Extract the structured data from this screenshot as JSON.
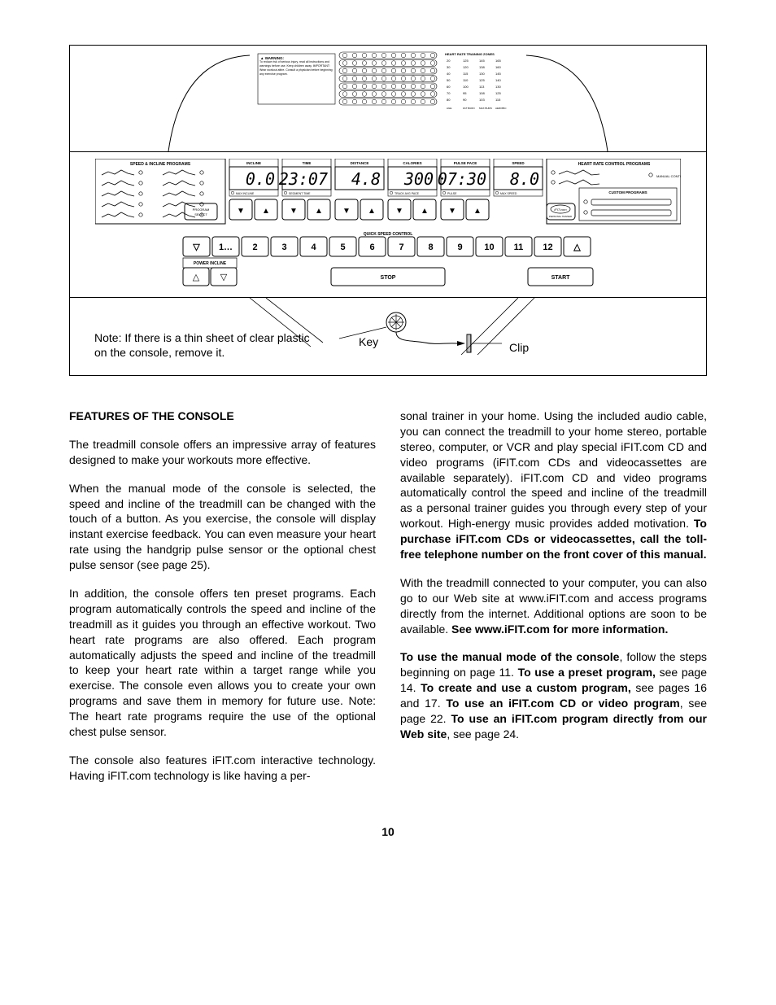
{
  "figure": {
    "note": "Note: If there is a thin sheet of clear plastic on the console, remove it.",
    "key_label": "Key",
    "clip_label": "Clip",
    "warning_title": "WARNING:",
    "warning_body": "To reduce risk of serious injury, read all instructions and warnings before use. Keep children away. IMPORTANT: Wear workout attire. Consult a physician before beginning any exercise program.",
    "hr_zone_title": "HEART RATE TRAINING ZONES",
    "hr_zone_header": [
      "AGE",
      "FAT BURN",
      "MAX BURN",
      "AEROBIC"
    ],
    "hr_zone_rows": [
      [
        "20",
        "125",
        "145",
        "165"
      ],
      [
        "30",
        "120",
        "138",
        "160"
      ],
      [
        "40",
        "115",
        "130",
        "145"
      ],
      [
        "50",
        "110",
        "125",
        "140"
      ],
      [
        "60",
        "100",
        "113",
        "130"
      ],
      [
        "70",
        "95",
        "108",
        "125"
      ],
      [
        "80",
        "90",
        "103",
        "115"
      ]
    ],
    "console": {
      "left_title": "SPEED & INCLINE PROGRAMS",
      "right_title": "HEART RATE CONTROL PROGRAMS",
      "manual_label": "MANUAL CONTROL",
      "custom_label": "CUSTOM PROGRAMS",
      "program_select": "PROGRAM SELECT",
      "ifit_label": "iFIT.com",
      "personal_trainer": "PERSONAL TRAINER",
      "displays": [
        {
          "title": "INCLINE",
          "value": "0.0",
          "sub": "MAX INCLINE"
        },
        {
          "title": "TIME",
          "value": "23:07",
          "sub": "SEGMENT TIME"
        },
        {
          "title": "DISTANCE",
          "value": "4.8",
          "sub": ""
        },
        {
          "title": "CALORIES",
          "value": "300",
          "sub": "TRACK  AVG PACE"
        },
        {
          "title": "PULSE  PACE",
          "value": "07:30",
          "sub": "PULSE"
        },
        {
          "title": "SPEED",
          "value": "8.0",
          "sub": "MAX SPEED"
        }
      ],
      "quick_speed_label": "QUICK SPEED CONTROL",
      "quick_speed_buttons": [
        "▽",
        "1…",
        "2",
        "3",
        "4",
        "5",
        "6",
        "7",
        "8",
        "9",
        "10",
        "11",
        "12",
        "△"
      ],
      "power_incline_label": "POWER INCLINE",
      "power_incline_buttons": [
        "△",
        "▽"
      ],
      "stop_label": "STOP",
      "start_label": "START"
    }
  },
  "body": {
    "heading": "FEATURES OF THE CONSOLE",
    "p1": "The treadmill console offers an impressive array of features designed to make your workouts more effective.",
    "p2": "When the manual mode of the console is selected, the speed and incline of the treadmill can be changed with the touch of a button. As you exercise, the console will display instant exercise feedback. You can even measure your heart rate using the handgrip pulse sensor or the optional chest pulse sensor (see page 25).",
    "p3": "In addition, the console offers ten preset programs. Each program automatically controls the speed and incline of the treadmill as it guides you through an effective workout. Two heart rate programs are also offered. Each program automatically adjusts the speed and incline of the treadmill to keep your heart rate within a target range while you exercise. The console even allows you to create your own programs and save them in memory for future use. Note: The heart rate programs require the use of the optional chest pulse sensor.",
    "p4a": "The console also features iFIT.com interactive technology. Having iFIT.com technology is like having a per",
    "p4b": "sonal trainer in your home. Using the included audio cable, you can connect the treadmill to your home stereo, portable stereo, computer, or VCR and play special iFIT.com CD and video programs (iFIT.com CDs and videocassettes are available separately). iFIT.com CD and video programs automatically control the speed and incline of the treadmill as a personal trainer guides you through every step of your workout. High-energy music provides added motivation. ",
    "p4b_bold": "To purchase iFIT.com CDs or videocassettes, call the toll-free  telephone number on the front cover of this manual.",
    "p5": "With the treadmill connected to your computer, you can also go to our Web site at www.iFIT.com and access programs directly from the internet. Additional options are soon to be available. ",
    "p5_bold": "See www.iFIT.com for more information.",
    "p6_b1": "To use the manual mode of the console",
    "p6_t1": ", follow the steps beginning on page 11. ",
    "p6_b2": "To use a preset program,",
    "p6_t2": " see page 14. ",
    "p6_b3": "To create and use a custom program,",
    "p6_t3": " see pages 16 and 17. ",
    "p6_b4": "To use an iFIT.com CD or video program",
    "p6_t4": ", see page 22. ",
    "p6_b5": "To use an iFIT.com program directly from our Web site",
    "p6_t5": ", see page 24."
  },
  "page_number": "10"
}
